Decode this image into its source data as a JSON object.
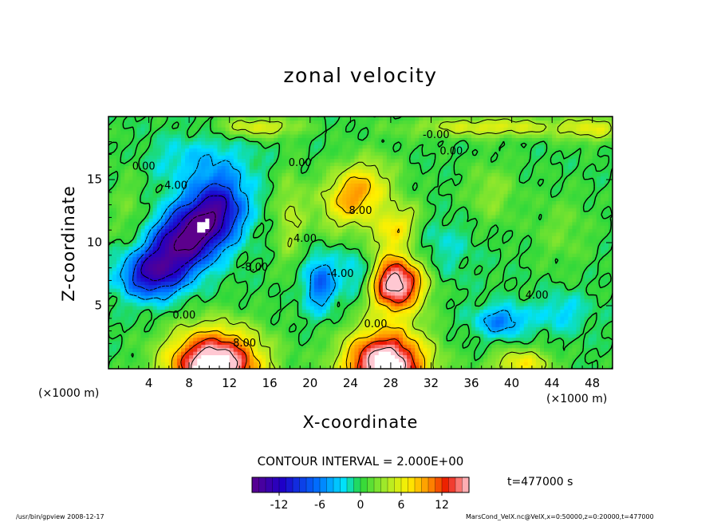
{
  "chart_data": {
    "type": "heatmap",
    "title": "zonal velocity",
    "xlabel": "X-coordinate",
    "ylabel": "Z-coordinate",
    "x_unit": "(×1000 m)",
    "z_unit": "(×1000 m)",
    "xlim": [
      0,
      50
    ],
    "ylim": [
      0,
      20
    ],
    "x_ticks": [
      4,
      8,
      12,
      16,
      20,
      24,
      28,
      32,
      36,
      40,
      44,
      48
    ],
    "y_ticks": [
      5,
      10,
      15
    ],
    "contour_interval_text": "CONTOUR INTERVAL = 2.000E+00",
    "time_text": "t=477000 s",
    "colorbar": {
      "range": [
        -16,
        16
      ],
      "ticks": [
        -12,
        -6,
        0,
        6,
        12
      ]
    },
    "contour_labels": [
      {
        "text": "0.00",
        "x": 3.5,
        "z": 16.0
      },
      {
        "text": "-4.00",
        "x": 6.5,
        "z": 14.5
      },
      {
        "text": "-8.00",
        "x": 14.5,
        "z": 8.0
      },
      {
        "text": "0.00",
        "x": 19.0,
        "z": 16.3
      },
      {
        "text": "4.00",
        "x": 19.5,
        "z": 10.3
      },
      {
        "text": "-4.00",
        "x": 23.0,
        "z": 7.5
      },
      {
        "text": "8.00",
        "x": 25.0,
        "z": 12.5
      },
      {
        "text": "0.00",
        "x": 26.5,
        "z": 3.5
      },
      {
        "text": "-0.00",
        "x": 32.5,
        "z": 18.5
      },
      {
        "text": "0.00",
        "x": 34.0,
        "z": 17.2
      },
      {
        "text": "4.00",
        "x": 42.5,
        "z": 5.8
      },
      {
        "text": "0.00",
        "x": 7.5,
        "z": 4.2
      },
      {
        "text": "8.00",
        "x": 13.5,
        "z": 2.0
      }
    ],
    "features": [
      {
        "x": 8,
        "z": 10.5,
        "sx": 4.5,
        "sz": 2.5,
        "value": -17,
        "rot": -0.55
      },
      {
        "x": 11,
        "z": 13,
        "sx": 2.5,
        "sz": 2.5,
        "value": -6,
        "rot": 0
      },
      {
        "x": 4,
        "z": 7.5,
        "sx": 3,
        "sz": 1.8,
        "value": -9,
        "rot": 0
      },
      {
        "x": 21,
        "z": 6.8,
        "sx": 1.6,
        "sz": 2.2,
        "value": -7,
        "rot": 0
      },
      {
        "x": 25,
        "z": 7.5,
        "sx": 1.8,
        "sz": 2,
        "value": -5,
        "rot": 0
      },
      {
        "x": 28.5,
        "z": 6.8,
        "sx": 2.8,
        "sz": 2.2,
        "value": 18,
        "rot": 0
      },
      {
        "x": 24.5,
        "z": 13.8,
        "sx": 3.5,
        "sz": 2.4,
        "value": 10,
        "rot": -0.4
      },
      {
        "x": 28.5,
        "z": 11.2,
        "sx": 2.5,
        "sz": 1.6,
        "value": 7,
        "rot": -0.5
      },
      {
        "x": 10.5,
        "z": 0.3,
        "sx": 4.5,
        "sz": 2.8,
        "value": 20,
        "rot": 0
      },
      {
        "x": 27.5,
        "z": 0.3,
        "sx": 4,
        "sz": 2.8,
        "value": 20,
        "rot": 0
      },
      {
        "x": 41,
        "z": 0.4,
        "sx": 3,
        "sz": 1.2,
        "value": 7,
        "rot": 0
      },
      {
        "x": 39,
        "z": 3.8,
        "sx": 2.5,
        "sz": 1.2,
        "value": -6,
        "rot": 0
      },
      {
        "x": 45,
        "z": 4.5,
        "sx": 2.5,
        "sz": 1.5,
        "value": -3,
        "rot": 0
      },
      {
        "x": 18,
        "z": 12,
        "sx": 1.5,
        "sz": 4,
        "value": 4,
        "rot": 0
      },
      {
        "x": 15,
        "z": 19.2,
        "sx": 4,
        "sz": 0.8,
        "value": 6,
        "rot": 0
      },
      {
        "x": 38,
        "z": 19.2,
        "sx": 8,
        "sz": 0.8,
        "value": 6,
        "rot": 0
      },
      {
        "x": 48,
        "z": 19.0,
        "sx": 3,
        "sz": 1,
        "value": 5,
        "rot": 0
      },
      {
        "x": 45,
        "z": 11,
        "sx": 3,
        "sz": 3,
        "value": 2,
        "rot": 0
      },
      {
        "x": 38,
        "z": 14,
        "sx": 2.5,
        "sz": 2.5,
        "value": 3,
        "rot": 0
      },
      {
        "x": 9,
        "z": 16.5,
        "sx": 5,
        "sz": 2,
        "value": -3,
        "rot": 0
      },
      {
        "x": 33,
        "z": 9.5,
        "sx": 3,
        "sz": 2.5,
        "value": -2,
        "rot": 0
      },
      {
        "x": 2,
        "z": 12,
        "sx": 1.8,
        "sz": 5,
        "value": 2,
        "rot": 0
      }
    ]
  },
  "footer": {
    "left": "/usr/bin/gpview  2008-12-17",
    "right": "MarsCond_VelX.nc@VelX,x=0:50000,z=0:20000,t=477000"
  }
}
